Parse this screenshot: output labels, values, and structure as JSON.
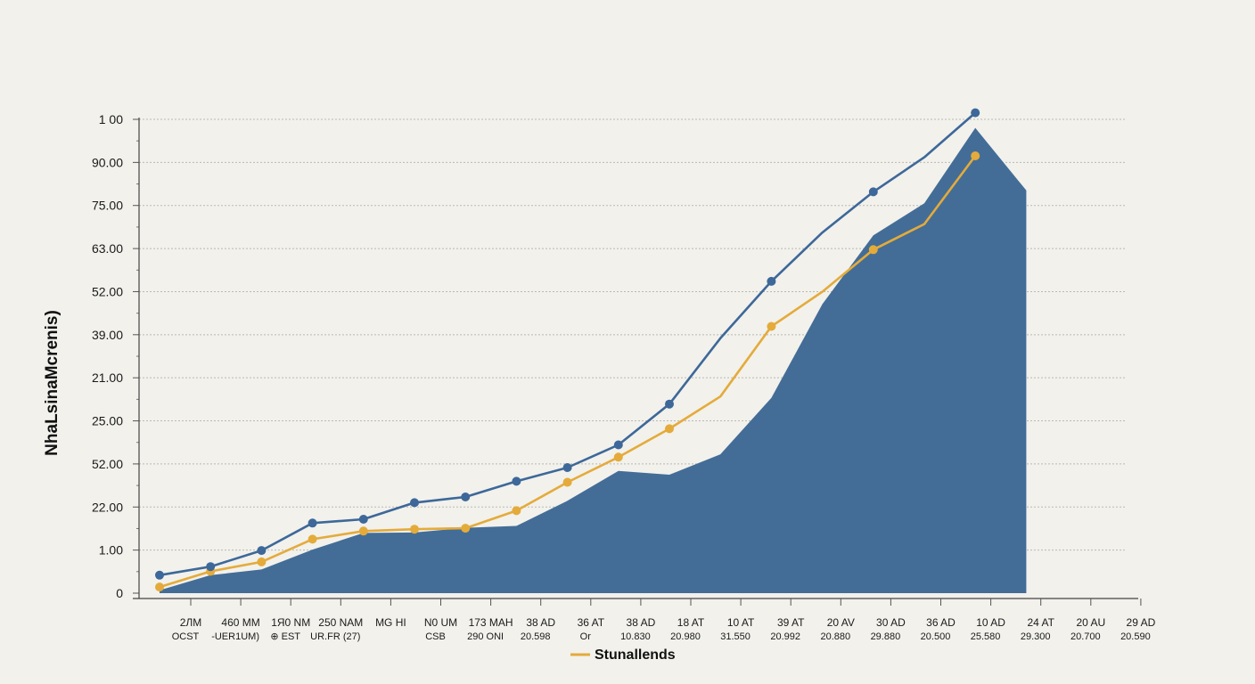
{
  "chart_data": {
    "type": "area",
    "title": "",
    "ylabel": "NhaLsinaMcrenis)",
    "xlabel": "",
    "ylim": [
      0,
      110
    ],
    "grid": true,
    "legend_placement": "bottom-center",
    "y_ticks": [
      "0",
      "1.00",
      "22.00",
      "52.00",
      "25.00",
      "21.00",
      "39.00",
      "52.00",
      "63.00",
      "75.00",
      "90.00",
      "1 00"
    ],
    "x_ticks": [
      {
        "label": "2ЛМ",
        "sub": "ОСST"
      },
      {
        "label": "460 MM",
        "sub": "-UER1UM)"
      },
      {
        "label": "1Я0 NM",
        "sub": "⊕ ЕSТ"
      },
      {
        "label": "250 NAM",
        "sub": "UR.FR (27)"
      },
      {
        "label": "MG HI",
        "sub": ""
      },
      {
        "label": "N0 UM",
        "sub": "CSB"
      },
      {
        "label": "173 MAH",
        "sub": "290 ONI"
      },
      {
        "label": "38 AD",
        "sub": "20.598"
      },
      {
        "label": "36 AT",
        "sub": "Or"
      },
      {
        "label": "38 AD",
        "sub": "10.830"
      },
      {
        "label": "18 AT",
        "sub": "20.980"
      },
      {
        "label": "10 AT",
        "sub": "31.550"
      },
      {
        "label": "39 AT",
        "sub": "20.992"
      },
      {
        "label": "20 AV",
        "sub": "20.880"
      },
      {
        "label": "30 AD",
        "sub": "29.880"
      },
      {
        "label": "36 AD",
        "sub": "20.500"
      },
      {
        "label": "10 AD",
        "sub": "25.580"
      },
      {
        "label": "24 AT",
        "sub": "29.300"
      },
      {
        "label": "20 AU",
        "sub": "20.700"
      },
      {
        "label": "29 AD",
        "sub": "20.590"
      }
    ],
    "series": [
      {
        "color": "#3d6899",
        "kind": "line",
        "markers": true,
        "x": [
          0,
          1,
          2,
          3,
          4,
          5,
          6,
          7,
          8,
          9,
          10,
          11,
          12,
          13,
          14,
          15,
          16
        ],
        "values": [
          3.8,
          5.6,
          9.0,
          14.8,
          15.6,
          19.1,
          20.3,
          23.6,
          26.5,
          31.3,
          39.9,
          53.8,
          65.8,
          76.1,
          84.7,
          92.0,
          101.4
        ]
      },
      {
        "name": "Stunallends",
        "color": "#e4ab3b",
        "kind": "line",
        "markers": true,
        "x": [
          0,
          1,
          2,
          3,
          4,
          5,
          6,
          7,
          8,
          9,
          10,
          11,
          12,
          13,
          14,
          15,
          16
        ],
        "values": [
          1.3,
          4.6,
          6.6,
          11.4,
          13.1,
          13.5,
          13.7,
          17.4,
          23.4,
          28.7,
          34.7,
          41.5,
          56.3,
          63.6,
          72.5,
          77.9,
          92.3
        ]
      },
      {
        "color": "#436d97",
        "kind": "area",
        "x": [
          0,
          1,
          2,
          3,
          4,
          5,
          6,
          7,
          8,
          9,
          10,
          11,
          12,
          13,
          14,
          15,
          16,
          17
        ],
        "values": [
          0.6,
          3.8,
          5.0,
          9.2,
          12.7,
          12.8,
          13.8,
          14.2,
          19.5,
          25.8,
          25.0,
          29.3,
          41.2,
          61.0,
          75.5,
          82.3,
          98.2,
          85.0
        ]
      }
    ]
  }
}
